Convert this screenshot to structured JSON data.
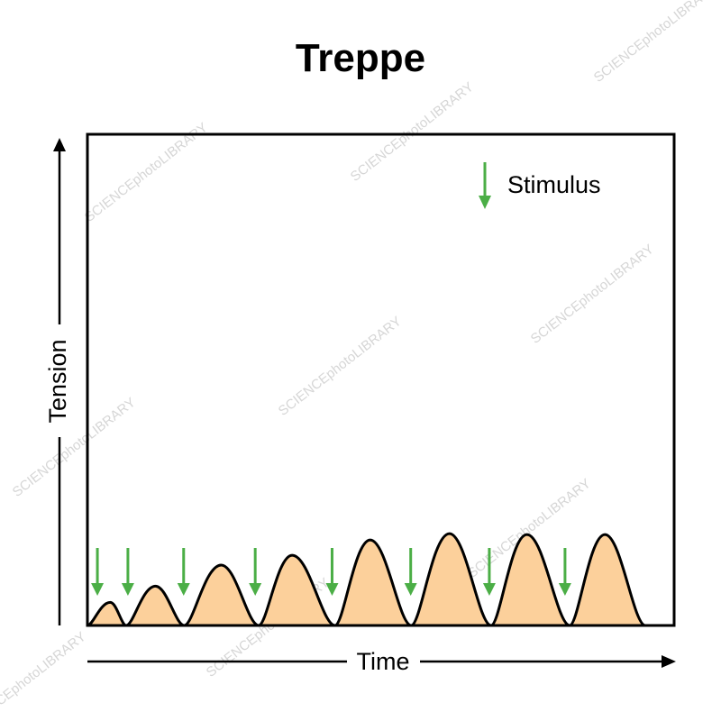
{
  "chart_data": {
    "type": "line",
    "title": "Treppe",
    "xlabel": "Time",
    "ylabel": "Tension",
    "legend": {
      "label": "Stimulus",
      "placement": "top-right",
      "marker": "down-arrow"
    },
    "grid": false,
    "xlim": [
      0,
      100
    ],
    "ylim": [
      0,
      100
    ],
    "series": [
      {
        "values": [
          [
            0,
            0
          ],
          [
            3.9,
            4.7
          ],
          [
            6.6,
            0
          ],
          [
            11.6,
            8.0
          ],
          [
            16.5,
            0
          ],
          [
            22.8,
            12.3
          ],
          [
            29.2,
            0
          ],
          [
            34.9,
            14.3
          ],
          [
            42.2,
            0
          ],
          [
            48.2,
            17.4
          ],
          [
            55.2,
            0
          ],
          [
            61.7,
            18.7
          ],
          [
            68.8,
            0
          ],
          [
            74.9,
            18.5
          ],
          [
            82.2,
            0
          ],
          [
            88.2,
            18.5
          ],
          [
            95.1,
            0
          ]
        ]
      }
    ],
    "stimuli_x": [
      1.7,
      6.9,
      16.4,
      28.6,
      41.7,
      55.1,
      68.5,
      81.4
    ]
  },
  "colors": {
    "fill": "#fcd09b",
    "stroke": "#000000",
    "stimulus": "#4bae46",
    "watermark": "#d6d6d6"
  },
  "watermark": "SCIENCEphotoLIBRARY"
}
